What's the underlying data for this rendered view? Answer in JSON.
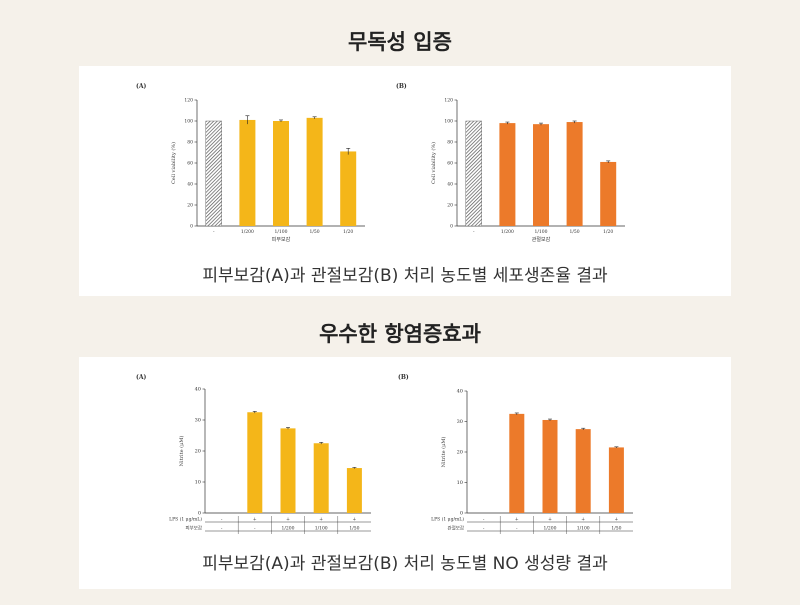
{
  "sections": [
    {
      "title": "무독성 입증",
      "caption": "피부보감(A)과 관절보감(B) 처리 농도별 세포생존율 결과"
    },
    {
      "title": "우수한 항염증효과",
      "caption": "피부보감(A)과 관절보감(B) 처리 농도별 NO 생성량 결과"
    }
  ],
  "colors": {
    "yellow": "#f4b619",
    "orange": "#ec7a2a",
    "control": "#9a9a9a"
  },
  "chart_data": [
    {
      "type": "bar",
      "panel": "(A)",
      "categories": [
        "-",
        "1/200",
        "1/100",
        "1/50",
        "1/20"
      ],
      "values": [
        100,
        101,
        100,
        103,
        71
      ],
      "errors": [
        0,
        4,
        1,
        1,
        3
      ],
      "ylabel": "Cell viability (%)",
      "xlabel": "피부보감",
      "ylim": [
        0,
        120
      ],
      "yticks": [
        0,
        20,
        40,
        60,
        80,
        100,
        120
      ],
      "color": "yellow"
    },
    {
      "type": "bar",
      "panel": "(B)",
      "categories": [
        "-",
        "1/200",
        "1/100",
        "1/50",
        "1/20"
      ],
      "values": [
        100,
        98,
        97,
        99,
        61
      ],
      "errors": [
        0,
        1,
        1,
        1,
        1
      ],
      "ylabel": "Cell viability (%)",
      "xlabel": "관절보감",
      "ylim": [
        0,
        120
      ],
      "yticks": [
        0,
        20,
        40,
        60,
        80,
        100,
        120
      ],
      "color": "orange"
    },
    {
      "type": "bar",
      "panel": "(A)",
      "categories": [
        "",
        "",
        "",
        "",
        ""
      ],
      "values": [
        0,
        32.5,
        27.3,
        22.5,
        14.5
      ],
      "errors": [
        0,
        0.3,
        0.3,
        0.3,
        0.2
      ],
      "ylabel": "Nitrite (μM)",
      "ylim": [
        0,
        40
      ],
      "yticks": [
        0,
        10,
        20,
        30,
        40
      ],
      "color": "yellow",
      "table_rows": [
        {
          "label": "LPS (1 μg/mL)",
          "cells": [
            "-",
            "+",
            "+",
            "+",
            "+"
          ]
        },
        {
          "label": "피부보감",
          "cells": [
            "-",
            "-",
            "1/200",
            "1/100",
            "1/50"
          ]
        }
      ]
    },
    {
      "type": "bar",
      "panel": "(B)",
      "categories": [
        "",
        "",
        "",
        "",
        ""
      ],
      "values": [
        0,
        32.5,
        30.5,
        27.5,
        21.5
      ],
      "errors": [
        0,
        0.3,
        0.3,
        0.3,
        0.2
      ],
      "ylabel": "Nitrite (μM)",
      "ylim": [
        0,
        40
      ],
      "yticks": [
        0,
        10,
        20,
        30,
        40
      ],
      "color": "orange",
      "table_rows": [
        {
          "label": "LPS (1 μg/mL)",
          "cells": [
            "-",
            "+",
            "+",
            "+",
            "+"
          ]
        },
        {
          "label": "관절보감",
          "cells": [
            "-",
            "-",
            "1/200",
            "1/100",
            "1/50"
          ]
        }
      ]
    }
  ]
}
